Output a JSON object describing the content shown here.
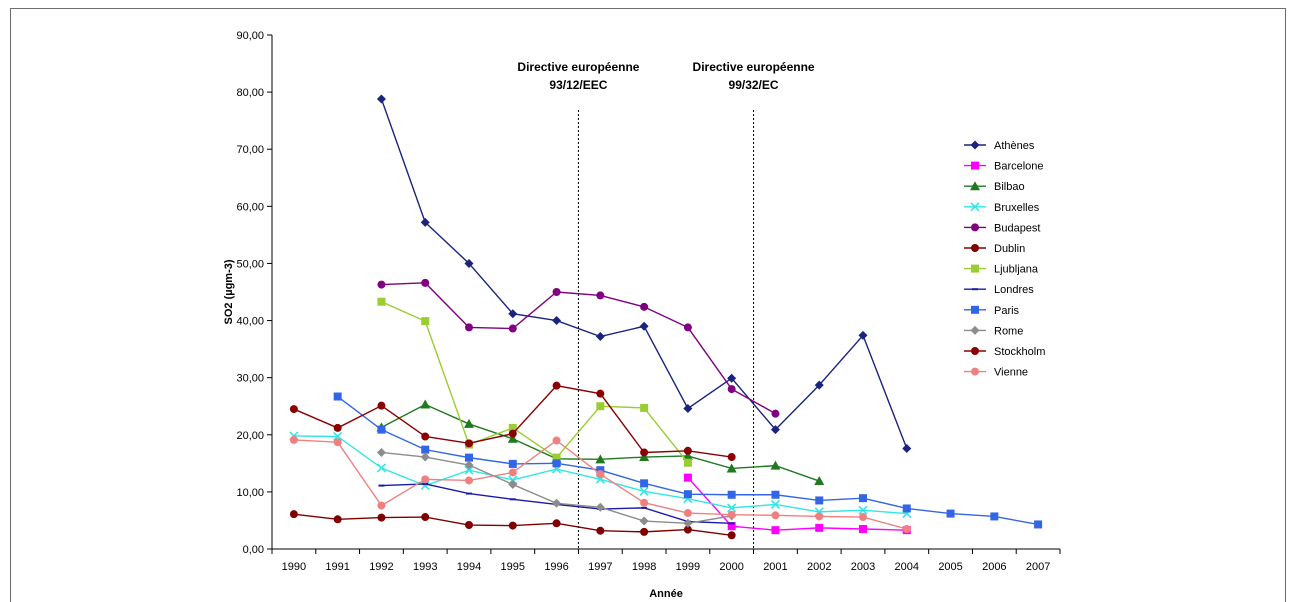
{
  "chart_data": {
    "type": "line",
    "xlabel": "Année",
    "ylabel": "SO2 (µgm-3)",
    "ylim": [
      0,
      90
    ],
    "yticks": [
      "0,00",
      "10,00",
      "20,00",
      "30,00",
      "40,00",
      "50,00",
      "60,00",
      "70,00",
      "80,00",
      "90,00"
    ],
    "categories": [
      "1990",
      "1991",
      "1992",
      "1993",
      "1994",
      "1995",
      "1996",
      "1997",
      "1998",
      "1999",
      "2000",
      "2001",
      "2002",
      "2003",
      "2004",
      "2005",
      "2006",
      "2007"
    ],
    "grid": false,
    "legend_position": "right",
    "annotations": [
      {
        "lines": [
          "Directive européenne",
          "93/12/EEC"
        ],
        "between": [
          "1996",
          "1997"
        ]
      },
      {
        "lines": [
          "Directive européenne",
          "99/32/EC"
        ],
        "between": [
          "2000",
          "2001"
        ]
      }
    ],
    "series": [
      {
        "name": "Athènes",
        "color": "#1a237e",
        "marker": "diamond",
        "values": [
          null,
          null,
          78.8,
          57.2,
          50.0,
          41.2,
          40.0,
          37.2,
          39.0,
          24.6,
          29.9,
          20.9,
          28.7,
          37.4,
          17.6,
          null,
          null,
          null
        ]
      },
      {
        "name": "Barcelone",
        "color": "#ff00ff",
        "marker": "square",
        "values": [
          null,
          null,
          null,
          null,
          null,
          null,
          null,
          null,
          null,
          12.5,
          4.0,
          3.3,
          3.7,
          3.5,
          3.3,
          null,
          null,
          null
        ]
      },
      {
        "name": "Bilbao",
        "color": "#1f7a1f",
        "marker": "triangle",
        "values": [
          null,
          null,
          21.3,
          25.3,
          21.9,
          19.3,
          15.8,
          15.7,
          16.1,
          16.3,
          14.1,
          14.6,
          11.9,
          null,
          null,
          null,
          null,
          null
        ]
      },
      {
        "name": "Bruxelles",
        "color": "#33e6e6",
        "marker": "x",
        "values": [
          19.8,
          19.7,
          14.2,
          11.1,
          13.8,
          12.1,
          14.0,
          12.2,
          10.1,
          8.8,
          7.2,
          7.8,
          6.5,
          6.8,
          6.2,
          null,
          null,
          null
        ]
      },
      {
        "name": "Budapest",
        "color": "#800080",
        "marker": "circle",
        "values": [
          null,
          null,
          46.3,
          46.6,
          38.8,
          38.6,
          45.0,
          44.4,
          42.4,
          38.8,
          28.0,
          23.7,
          null,
          null,
          null,
          null,
          null,
          null
        ]
      },
      {
        "name": "Dublin",
        "color": "#800000",
        "marker": "circle",
        "values": [
          6.1,
          5.2,
          5.5,
          5.6,
          4.2,
          4.1,
          4.5,
          3.2,
          3.0,
          3.4,
          2.4,
          null,
          null,
          null,
          null,
          null,
          null,
          null
        ]
      },
      {
        "name": "Ljubljana",
        "color": "#9acd32",
        "marker": "square",
        "values": [
          null,
          null,
          43.3,
          39.9,
          18.3,
          21.2,
          16.0,
          25.0,
          24.7,
          15.1,
          null,
          null,
          null,
          null,
          null,
          null,
          null,
          null
        ]
      },
      {
        "name": "Londres",
        "color": "#1a1aaa",
        "marker": "dash",
        "values": [
          null,
          null,
          11.1,
          11.4,
          9.7,
          8.7,
          7.8,
          7.0,
          7.2,
          4.8,
          4.5,
          null,
          null,
          null,
          null,
          null,
          null,
          null
        ]
      },
      {
        "name": "Paris",
        "color": "#3366e6",
        "marker": "square",
        "values": [
          null,
          26.7,
          20.9,
          17.4,
          16.0,
          14.9,
          15.0,
          13.8,
          11.5,
          9.6,
          9.5,
          9.5,
          8.5,
          8.9,
          7.1,
          6.2,
          5.7,
          4.3
        ]
      },
      {
        "name": "Rome",
        "color": "#8c8c8c",
        "marker": "diamond",
        "values": [
          null,
          null,
          16.9,
          16.1,
          14.7,
          11.3,
          8.0,
          7.3,
          4.9,
          4.5,
          5.8,
          null,
          null,
          null,
          null,
          null,
          null,
          null
        ]
      },
      {
        "name": "Stockholm",
        "color": "#8b0000",
        "marker": "circle",
        "values": [
          24.5,
          21.2,
          25.1,
          19.7,
          18.5,
          20.2,
          28.6,
          27.2,
          16.9,
          17.2,
          16.1,
          null,
          null,
          null,
          null,
          null,
          null,
          null
        ]
      },
      {
        "name": "Vienne",
        "color": "#f08080",
        "marker": "circle",
        "values": [
          19.1,
          18.7,
          7.6,
          12.2,
          12.0,
          13.4,
          19.0,
          13.1,
          8.1,
          6.3,
          6.0,
          5.9,
          5.7,
          5.6,
          3.5,
          null,
          null,
          null
        ]
      }
    ]
  }
}
